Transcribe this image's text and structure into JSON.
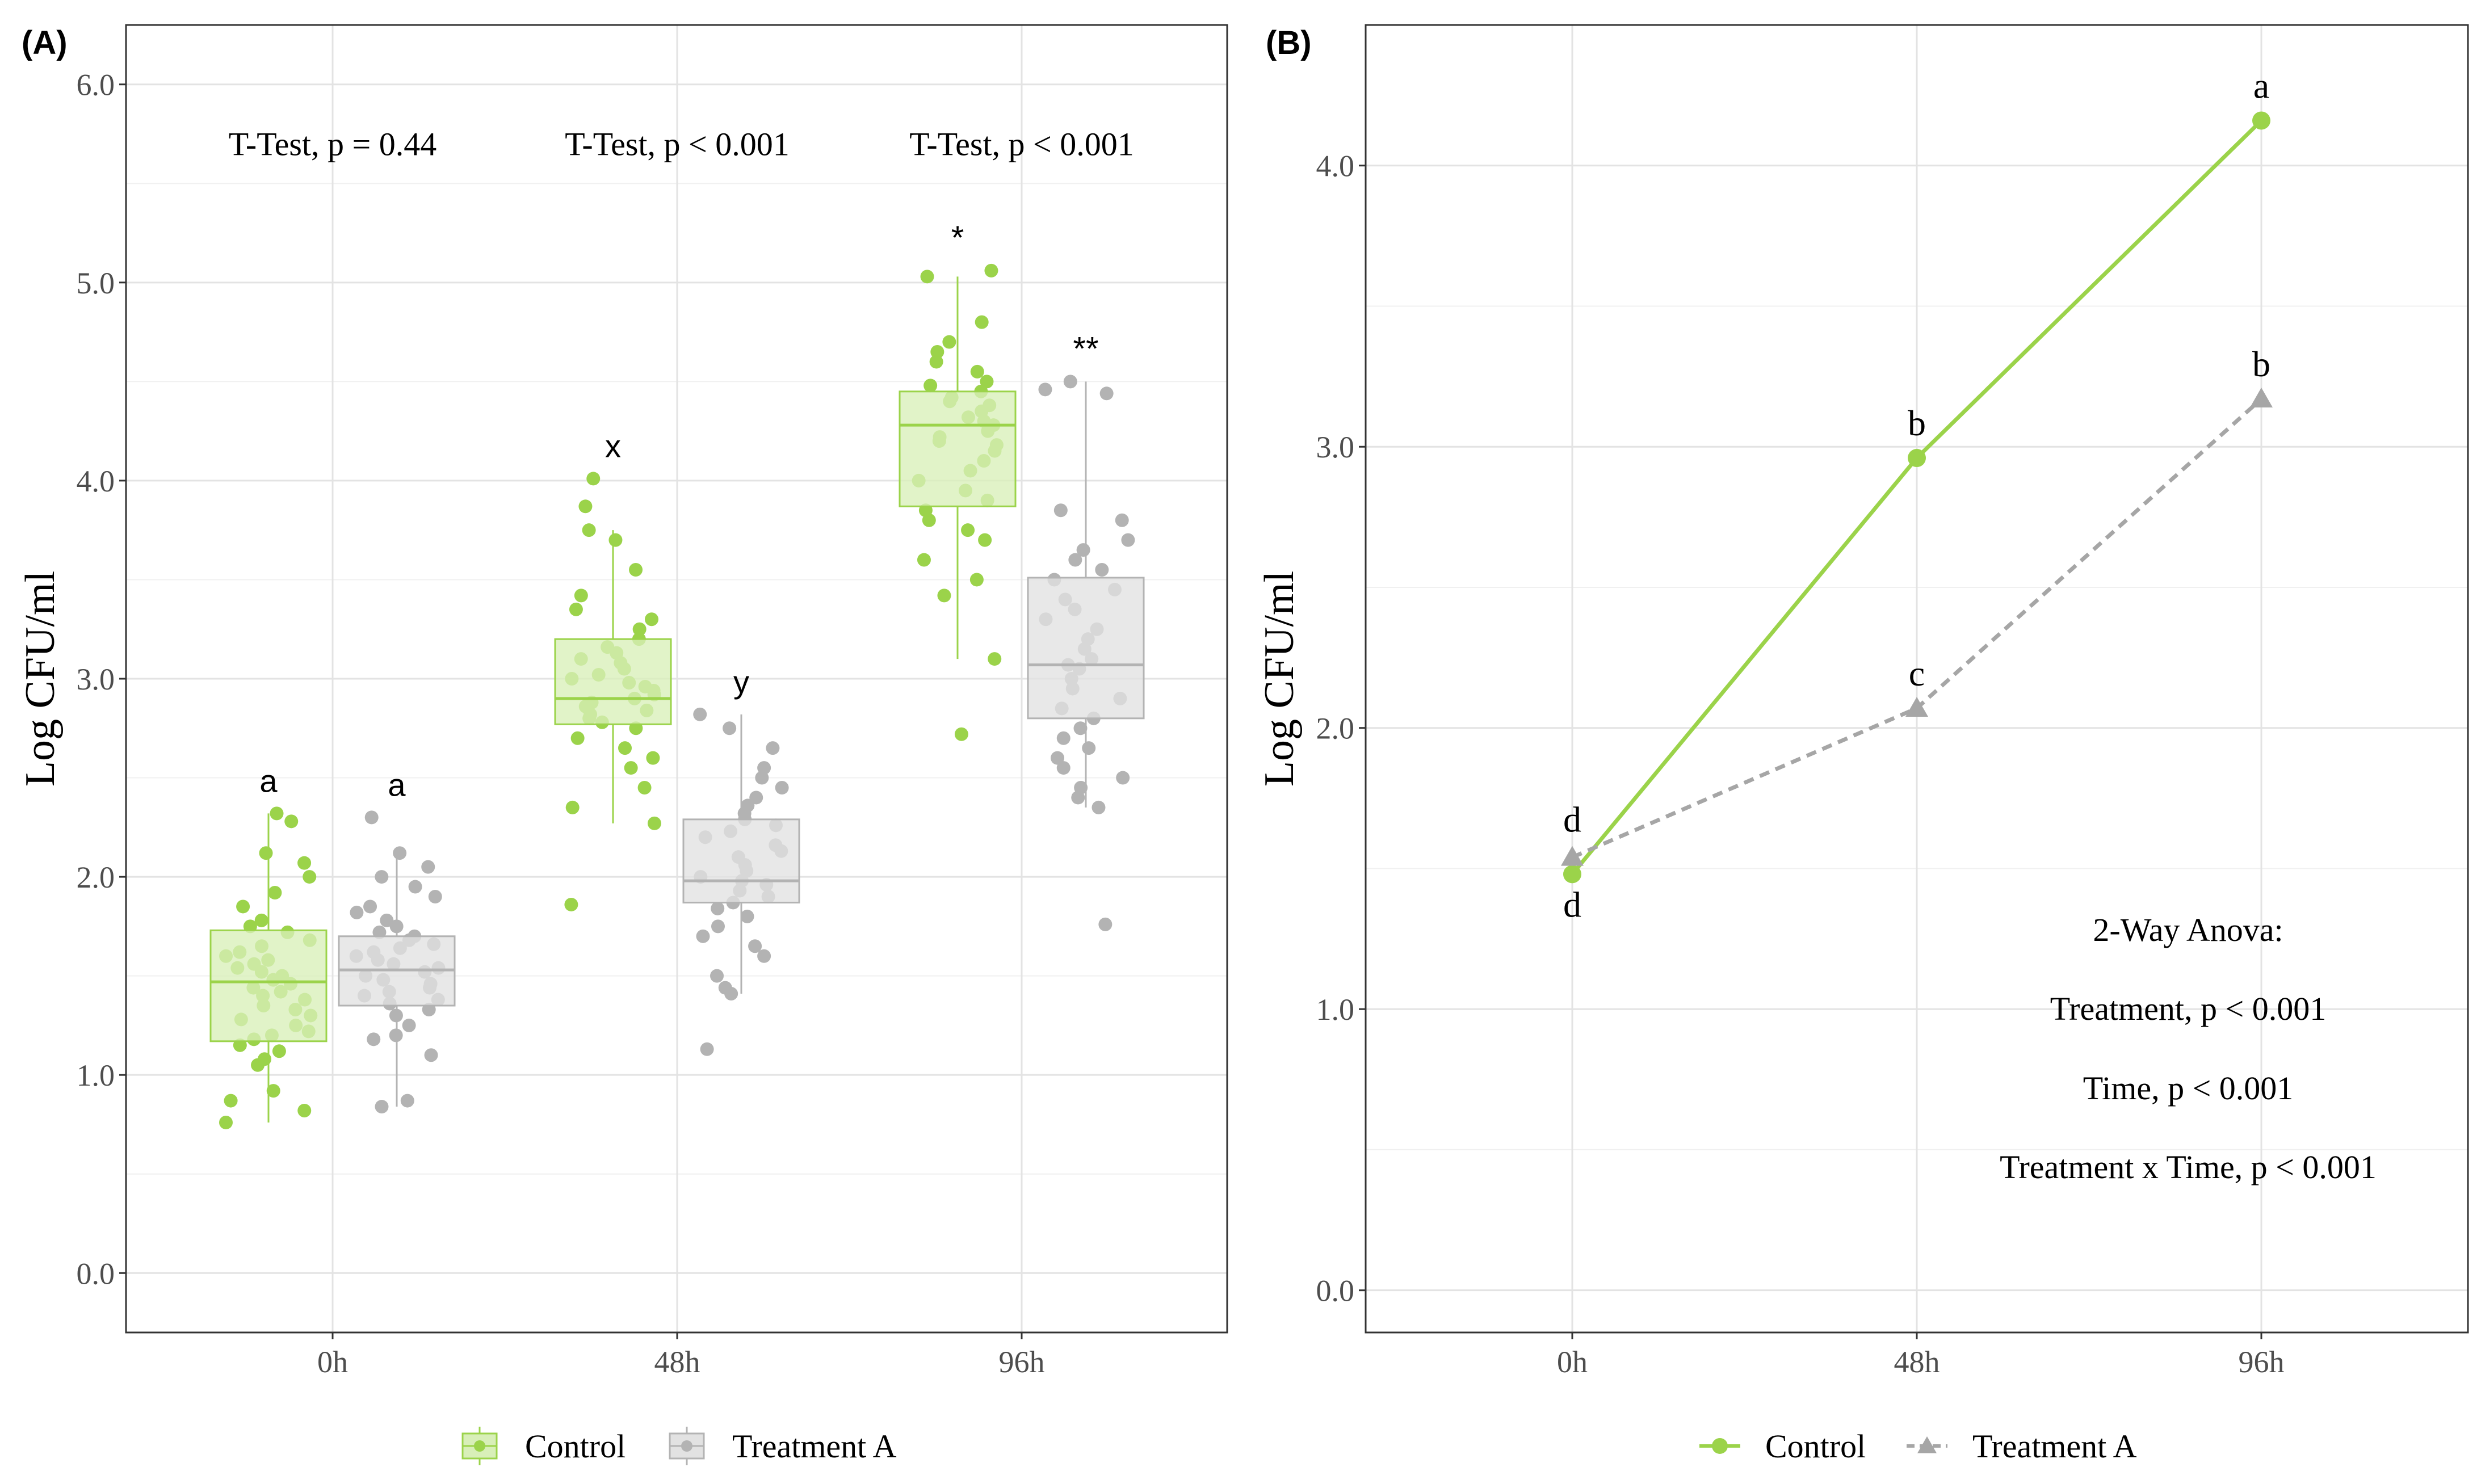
{
  "chart_data": [
    {
      "type": "box",
      "panel_label": "(A)",
      "ylabel": "Log CFU/ml",
      "ylim": [
        -0.3,
        6.3
      ],
      "yticks": [
        0.0,
        1.0,
        2.0,
        3.0,
        4.0,
        5.0,
        6.0
      ],
      "ytick_labels": [
        "0.0",
        "1.0",
        "2.0",
        "3.0",
        "4.0",
        "5.0",
        "6.0"
      ],
      "categories": [
        "0h",
        "48h",
        "96h"
      ],
      "grid": true,
      "legend": {
        "position": "bottom",
        "entries": [
          "Control",
          "Treatment A"
        ]
      },
      "annotations": [
        "T-Test, p = 0.44",
        "T-Test, p < 0.001",
        "T-Test, p < 0.001"
      ],
      "series": [
        {
          "name": "Control",
          "color": "#9bd34a",
          "boxes": [
            {
              "category": "0h",
              "lower_whisker": 0.76,
              "q1": 1.17,
              "median": 1.47,
              "q3": 1.73,
              "upper_whisker": 2.32,
              "label": "a",
              "points": [
                0.76,
                0.82,
                0.87,
                0.92,
                1.05,
                1.08,
                1.12,
                1.15,
                1.18,
                1.2,
                1.22,
                1.25,
                1.28,
                1.3,
                1.33,
                1.35,
                1.38,
                1.4,
                1.42,
                1.44,
                1.46,
                1.48,
                1.5,
                1.52,
                1.54,
                1.56,
                1.58,
                1.6,
                1.62,
                1.65,
                1.68,
                1.72,
                1.75,
                1.78,
                1.85,
                1.92,
                2.0,
                2.07,
                2.12,
                2.28,
                2.32
              ]
            },
            {
              "category": "48h",
              "lower_whisker": 2.27,
              "q1": 2.77,
              "median": 2.9,
              "q3": 3.2,
              "upper_whisker": 3.75,
              "label": "x",
              "points": [
                1.86,
                2.27,
                2.35,
                2.45,
                2.55,
                2.6,
                2.65,
                2.7,
                2.75,
                2.78,
                2.8,
                2.82,
                2.84,
                2.86,
                2.88,
                2.9,
                2.92,
                2.94,
                2.96,
                2.98,
                3.0,
                3.02,
                3.05,
                3.08,
                3.1,
                3.13,
                3.16,
                3.2,
                3.25,
                3.3,
                3.35,
                3.42,
                3.55,
                3.7,
                3.75,
                3.87,
                4.01
              ]
            },
            {
              "category": "96h",
              "lower_whisker": 3.1,
              "q1": 3.87,
              "median": 4.28,
              "q3": 4.45,
              "upper_whisker": 5.03,
              "label": "*",
              "points": [
                2.72,
                3.1,
                3.42,
                3.5,
                3.6,
                3.7,
                3.75,
                3.8,
                3.85,
                3.9,
                3.95,
                4.0,
                4.05,
                4.1,
                4.15,
                4.18,
                4.2,
                4.22,
                4.25,
                4.28,
                4.3,
                4.32,
                4.35,
                4.38,
                4.4,
                4.42,
                4.45,
                4.48,
                4.5,
                4.55,
                4.6,
                4.65,
                4.7,
                4.8,
                5.03,
                5.06
              ]
            }
          ]
        },
        {
          "name": "Treatment A",
          "color": "#b3b3b3",
          "boxes": [
            {
              "category": "0h",
              "lower_whisker": 0.84,
              "q1": 1.35,
              "median": 1.53,
              "q3": 1.7,
              "upper_whisker": 2.12,
              "label": "a",
              "points": [
                0.84,
                0.87,
                1.1,
                1.18,
                1.2,
                1.25,
                1.3,
                1.33,
                1.36,
                1.38,
                1.4,
                1.42,
                1.44,
                1.46,
                1.48,
                1.5,
                1.52,
                1.54,
                1.56,
                1.58,
                1.6,
                1.62,
                1.64,
                1.66,
                1.68,
                1.7,
                1.72,
                1.75,
                1.78,
                1.82,
                1.85,
                1.9,
                1.95,
                2.0,
                2.05,
                2.12,
                2.3
              ]
            },
            {
              "category": "48h",
              "lower_whisker": 1.41,
              "q1": 1.87,
              "median": 1.98,
              "q3": 2.29,
              "upper_whisker": 2.82,
              "label": "y",
              "points": [
                1.13,
                1.41,
                1.44,
                1.5,
                1.6,
                1.65,
                1.7,
                1.75,
                1.8,
                1.84,
                1.87,
                1.9,
                1.93,
                1.96,
                1.98,
                2.0,
                2.03,
                2.06,
                2.1,
                2.13,
                2.16,
                2.2,
                2.23,
                2.26,
                2.29,
                2.32,
                2.36,
                2.4,
                2.45,
                2.5,
                2.55,
                2.65,
                2.75,
                2.82
              ]
            },
            {
              "category": "96h",
              "lower_whisker": 2.35,
              "q1": 2.8,
              "median": 3.07,
              "q3": 3.51,
              "upper_whisker": 4.5,
              "label": "**",
              "points": [
                1.76,
                2.35,
                2.4,
                2.45,
                2.5,
                2.55,
                2.6,
                2.65,
                2.7,
                2.75,
                2.8,
                2.85,
                2.9,
                2.95,
                3.0,
                3.05,
                3.07,
                3.1,
                3.15,
                3.2,
                3.25,
                3.3,
                3.35,
                3.4,
                3.45,
                3.5,
                3.55,
                3.6,
                3.65,
                3.7,
                3.8,
                3.85,
                4.44,
                4.46,
                4.5
              ]
            }
          ]
        }
      ]
    },
    {
      "type": "line",
      "panel_label": "(B)",
      "ylabel": "Log CFU/ml",
      "ylim": [
        -0.15,
        4.5
      ],
      "yticks": [
        0.0,
        1.0,
        2.0,
        3.0,
        4.0
      ],
      "ytick_labels": [
        "0.0",
        "1.0",
        "2.0",
        "3.0",
        "4.0"
      ],
      "categories": [
        "0h",
        "48h",
        "96h"
      ],
      "grid": true,
      "legend": {
        "position": "bottom",
        "entries": [
          "Control",
          "Treatment A"
        ]
      },
      "annotation": {
        "title": "2-Way Anova:",
        "lines": [
          "Treatment, p < 0.001",
          "Time, p < 0.001",
          "Treatment x Time, p < 0.001"
        ]
      },
      "series": [
        {
          "name": "Control",
          "color": "#9bd34a",
          "linestyle": "solid",
          "marker": "circle",
          "values": [
            1.48,
            2.96,
            4.16
          ],
          "labels": [
            "d",
            "b",
            "a"
          ]
        },
        {
          "name": "Treatment A",
          "color": "#a6a6a6",
          "linestyle": "dashed",
          "marker": "triangle",
          "values": [
            1.54,
            2.07,
            3.17
          ],
          "labels": [
            "d",
            "c",
            "b"
          ]
        }
      ]
    }
  ]
}
